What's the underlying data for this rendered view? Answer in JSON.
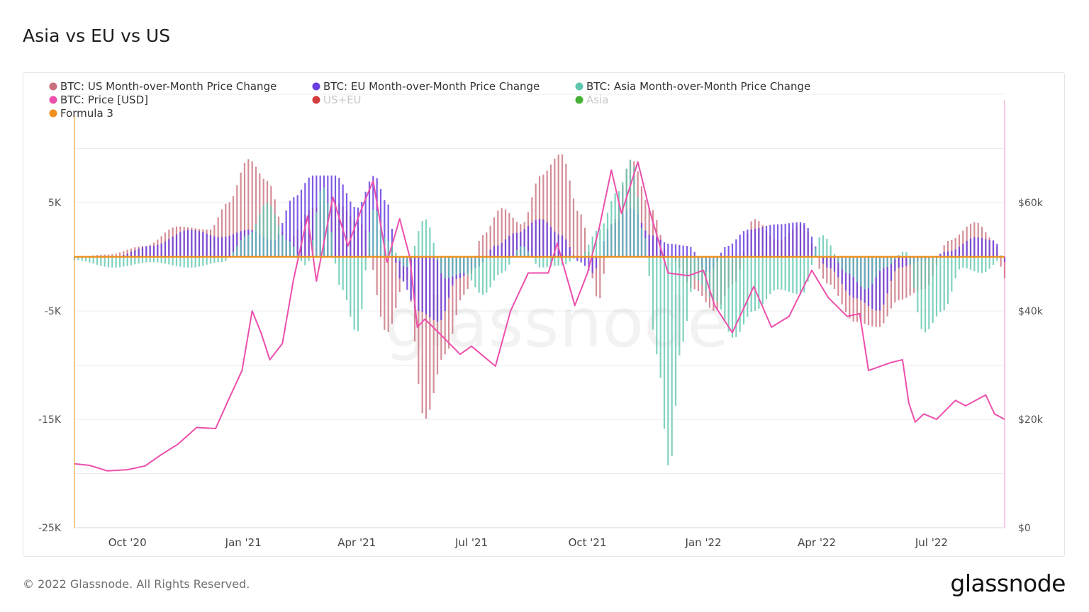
{
  "title": "Asia vs EU vs US",
  "footer": {
    "copyright": "© 2022 Glassnode. All Rights Reserved.",
    "logo": "glassnode"
  },
  "watermark": "glassnode",
  "colors": {
    "us": "#c9707c",
    "eu": "#6a3ee0",
    "asia": "#5fc7b0",
    "price": "#ec4fac",
    "us_eu": "#d23e3e",
    "asia_total": "#44b233",
    "formula3": "#f0901e"
  },
  "legend": [
    {
      "label": "BTC: US Month-over-Month Price Change",
      "color": "#c9707c",
      "active": true
    },
    {
      "label": "BTC: EU Month-over-Month Price Change",
      "color": "#6a3ee0",
      "active": true
    },
    {
      "label": "BTC: Asia Month-over-Month Price Change",
      "color": "#5fc7b0",
      "active": true
    },
    {
      "label": "BTC: Price [USD]",
      "color": "#ec4fac",
      "active": true
    },
    {
      "label": "US+EU",
      "color": "#d23e3e",
      "active": false
    },
    {
      "label": "Asia",
      "color": "#44b233",
      "active": false
    },
    {
      "label": "Formula 3",
      "color": "#f0901e",
      "active": true
    }
  ],
  "chart_data": {
    "type": "bar",
    "title": "Asia vs EU vs US",
    "x_range": [
      "2020-08-20",
      "2022-08-28"
    ],
    "x_ticks": [
      "Oct '20",
      "Jan '21",
      "Apr '21",
      "Jul '21",
      "Oct '21",
      "Jan '22",
      "Apr '22",
      "Jul '22"
    ],
    "y_left": {
      "range": [
        -25000,
        15000
      ],
      "ticks": [
        5000,
        -5000,
        -15000,
        -25000
      ],
      "tick_labels": [
        "5K",
        "-5K",
        "-15K",
        "-25K"
      ]
    },
    "y_right": {
      "range": [
        0,
        80000
      ],
      "ticks": [
        60000,
        40000,
        20000,
        0
      ],
      "tick_labels": [
        "$60k",
        "$40k",
        "$20k",
        "$0"
      ]
    },
    "grid": true,
    "legend_position": "top-left",
    "series": [
      {
        "name": "BTC: US Month-over-Month Price Change",
        "axis": "left",
        "style": "bars",
        "points": [
          [
            "2020-08-20",
            0
          ],
          [
            "2020-09-15",
            200
          ],
          [
            "2020-10-15",
            1000
          ],
          [
            "2020-11-10",
            2800
          ],
          [
            "2020-12-05",
            2500
          ],
          [
            "2020-12-20",
            5000
          ],
          [
            "2021-01-05",
            9000
          ],
          [
            "2021-01-20",
            7000
          ],
          [
            "2021-02-05",
            1500
          ],
          [
            "2021-02-25",
            4500
          ],
          [
            "2021-03-15",
            5000
          ],
          [
            "2021-04-05",
            3000
          ],
          [
            "2021-04-25",
            -7000
          ],
          [
            "2021-05-10",
            -2000
          ],
          [
            "2021-05-25",
            -15000
          ],
          [
            "2021-06-10",
            -9000
          ],
          [
            "2021-06-25",
            -3500
          ],
          [
            "2021-07-10",
            2000
          ],
          [
            "2021-07-25",
            4500
          ],
          [
            "2021-08-10",
            3000
          ],
          [
            "2021-08-25",
            7500
          ],
          [
            "2021-09-10",
            9500
          ],
          [
            "2021-09-25",
            4000
          ],
          [
            "2021-10-10",
            -4000
          ],
          [
            "2021-10-20",
            3000
          ],
          [
            "2021-11-05",
            9000
          ],
          [
            "2021-11-20",
            4500
          ],
          [
            "2021-12-05",
            0
          ],
          [
            "2021-12-25",
            -3000
          ],
          [
            "2022-01-10",
            -5000
          ],
          [
            "2022-01-25",
            -2500
          ],
          [
            "2022-02-10",
            3500
          ],
          [
            "2022-03-01",
            1500
          ],
          [
            "2022-03-20",
            3000
          ],
          [
            "2022-04-10",
            -2500
          ],
          [
            "2022-05-01",
            -6000
          ],
          [
            "2022-05-20",
            -6500
          ],
          [
            "2022-06-05",
            -4000
          ],
          [
            "2022-06-25",
            -3000
          ],
          [
            "2022-07-15",
            1500
          ],
          [
            "2022-08-05",
            3200
          ],
          [
            "2022-08-20",
            1500
          ],
          [
            "2022-08-28",
            -2000
          ]
        ]
      },
      {
        "name": "BTC: EU Month-over-Month Price Change",
        "axis": "left",
        "style": "bars",
        "points": [
          [
            "2020-08-20",
            0
          ],
          [
            "2020-09-20",
            0
          ],
          [
            "2020-10-20",
            1000
          ],
          [
            "2020-11-20",
            2500
          ],
          [
            "2020-12-15",
            1800
          ],
          [
            "2021-01-05",
            2500
          ],
          [
            "2021-01-25",
            1500
          ],
          [
            "2021-02-10",
            5500
          ],
          [
            "2021-02-25",
            7500
          ],
          [
            "2021-03-15",
            7500
          ],
          [
            "2021-04-01",
            4500
          ],
          [
            "2021-04-15",
            7500
          ],
          [
            "2021-04-25",
            5000
          ],
          [
            "2021-05-05",
            -2000
          ],
          [
            "2021-05-20",
            -5000
          ],
          [
            "2021-06-05",
            -6000
          ],
          [
            "2021-06-20",
            -2000
          ],
          [
            "2021-07-05",
            -1000
          ],
          [
            "2021-07-20",
            1000
          ],
          [
            "2021-08-05",
            2200
          ],
          [
            "2021-08-25",
            3500
          ],
          [
            "2021-09-10",
            2000
          ],
          [
            "2021-09-25",
            -500
          ],
          [
            "2021-10-05",
            -1500
          ],
          [
            "2021-10-20",
            3000
          ],
          [
            "2021-11-05",
            4500
          ],
          [
            "2021-11-20",
            2000
          ],
          [
            "2021-12-05",
            1200
          ],
          [
            "2021-12-20",
            1000
          ],
          [
            "2022-01-05",
            -1500
          ],
          [
            "2022-01-20",
            1000
          ],
          [
            "2022-02-05",
            2500
          ],
          [
            "2022-03-01",
            3000
          ],
          [
            "2022-03-20",
            3200
          ],
          [
            "2022-04-10",
            -1000
          ],
          [
            "2022-05-01",
            -3800
          ],
          [
            "2022-05-20",
            -5000
          ],
          [
            "2022-06-05",
            -1000
          ],
          [
            "2022-06-25",
            -300
          ],
          [
            "2022-07-15",
            500
          ],
          [
            "2022-08-05",
            1800
          ],
          [
            "2022-08-20",
            1500
          ],
          [
            "2022-08-28",
            -500
          ]
        ]
      },
      {
        "name": "BTC: Asia Month-over-Month Price Change",
        "axis": "left",
        "style": "bars",
        "points": [
          [
            "2020-08-20",
            -300
          ],
          [
            "2020-09-20",
            -1000
          ],
          [
            "2020-10-20",
            -500
          ],
          [
            "2020-11-20",
            -1000
          ],
          [
            "2020-12-15",
            -500
          ],
          [
            "2021-01-05",
            2000
          ],
          [
            "2021-01-20",
            5000
          ],
          [
            "2021-02-05",
            1500
          ],
          [
            "2021-02-20",
            -800
          ],
          [
            "2021-03-05",
            6500
          ],
          [
            "2021-03-20",
            -3000
          ],
          [
            "2021-04-01",
            -7000
          ],
          [
            "2021-04-15",
            4500
          ],
          [
            "2021-04-25",
            1500
          ],
          [
            "2021-05-10",
            -1000
          ],
          [
            "2021-05-25",
            3500
          ],
          [
            "2021-06-10",
            -2000
          ],
          [
            "2021-06-25",
            -1500
          ],
          [
            "2021-07-10",
            -3500
          ],
          [
            "2021-07-25",
            -1500
          ],
          [
            "2021-08-10",
            1000
          ],
          [
            "2021-08-25",
            -1000
          ],
          [
            "2021-09-10",
            -800
          ],
          [
            "2021-09-25",
            0
          ],
          [
            "2021-10-10",
            2500
          ],
          [
            "2021-10-25",
            6000
          ],
          [
            "2021-11-05",
            9000
          ],
          [
            "2021-11-15",
            2000
          ],
          [
            "2021-11-25",
            -9000
          ],
          [
            "2021-12-05",
            -19500
          ],
          [
            "2021-12-15",
            -8000
          ],
          [
            "2021-12-25",
            -2000
          ],
          [
            "2022-01-10",
            -4000
          ],
          [
            "2022-01-25",
            -7500
          ],
          [
            "2022-02-10",
            -5000
          ],
          [
            "2022-03-01",
            -3000
          ],
          [
            "2022-03-20",
            -3500
          ],
          [
            "2022-04-05",
            2000
          ],
          [
            "2022-04-25",
            -1500
          ],
          [
            "2022-05-10",
            -3000
          ],
          [
            "2022-05-25",
            -1000
          ],
          [
            "2022-06-10",
            500
          ],
          [
            "2022-06-25",
            -7000
          ],
          [
            "2022-07-10",
            -5000
          ],
          [
            "2022-07-25",
            -1000
          ],
          [
            "2022-08-10",
            -1500
          ],
          [
            "2022-08-28",
            0
          ]
        ]
      },
      {
        "name": "BTC: Price [USD]",
        "axis": "right",
        "style": "line",
        "points": [
          [
            "2020-08-20",
            11800
          ],
          [
            "2020-09-01",
            11500
          ],
          [
            "2020-09-15",
            10500
          ],
          [
            "2020-10-01",
            10700
          ],
          [
            "2020-10-15",
            11400
          ],
          [
            "2020-10-28",
            13500
          ],
          [
            "2020-11-10",
            15400
          ],
          [
            "2020-11-25",
            18500
          ],
          [
            "2020-12-10",
            18300
          ],
          [
            "2020-12-20",
            23500
          ],
          [
            "2020-12-31",
            29000
          ],
          [
            "2021-01-08",
            40000
          ],
          [
            "2021-01-15",
            36000
          ],
          [
            "2021-01-22",
            31000
          ],
          [
            "2021-02-01",
            34000
          ],
          [
            "2021-02-10",
            46000
          ],
          [
            "2021-02-21",
            57500
          ],
          [
            "2021-02-28",
            45500
          ],
          [
            "2021-03-13",
            61000
          ],
          [
            "2021-03-25",
            52000
          ],
          [
            "2021-04-05",
            59000
          ],
          [
            "2021-04-14",
            64000
          ],
          [
            "2021-04-25",
            49000
          ],
          [
            "2021-05-05",
            57000
          ],
          [
            "2021-05-13",
            50000
          ],
          [
            "2021-05-19",
            37000
          ],
          [
            "2021-05-25",
            38500
          ],
          [
            "2021-06-05",
            36000
          ],
          [
            "2021-06-22",
            32000
          ],
          [
            "2021-07-01",
            33500
          ],
          [
            "2021-07-20",
            29800
          ],
          [
            "2021-08-01",
            40000
          ],
          [
            "2021-08-15",
            47000
          ],
          [
            "2021-08-31",
            47000
          ],
          [
            "2021-09-07",
            52500
          ],
          [
            "2021-09-21",
            41000
          ],
          [
            "2021-10-01",
            47000
          ],
          [
            "2021-10-10",
            55000
          ],
          [
            "2021-10-20",
            66000
          ],
          [
            "2021-10-28",
            58000
          ],
          [
            "2021-11-10",
            67500
          ],
          [
            "2021-11-20",
            58000
          ],
          [
            "2021-12-04",
            47000
          ],
          [
            "2021-12-20",
            46500
          ],
          [
            "2022-01-01",
            47500
          ],
          [
            "2022-01-10",
            41000
          ],
          [
            "2022-01-24",
            36000
          ],
          [
            "2022-02-10",
            44500
          ],
          [
            "2022-02-24",
            37000
          ],
          [
            "2022-03-10",
            39000
          ],
          [
            "2022-03-28",
            47500
          ],
          [
            "2022-04-10",
            42500
          ],
          [
            "2022-04-25",
            39000
          ],
          [
            "2022-05-05",
            39500
          ],
          [
            "2022-05-12",
            29000
          ],
          [
            "2022-05-30",
            30500
          ],
          [
            "2022-06-08",
            31000
          ],
          [
            "2022-06-13",
            23000
          ],
          [
            "2022-06-18",
            19500
          ],
          [
            "2022-06-25",
            21000
          ],
          [
            "2022-07-05",
            20000
          ],
          [
            "2022-07-20",
            23500
          ],
          [
            "2022-07-28",
            22500
          ],
          [
            "2022-08-13",
            24500
          ],
          [
            "2022-08-20",
            21000
          ],
          [
            "2022-08-28",
            20000
          ]
        ]
      },
      {
        "name": "Formula 3",
        "axis": "left",
        "style": "line",
        "points": [
          [
            "2020-08-20",
            0
          ],
          [
            "2022-08-28",
            0
          ]
        ]
      }
    ]
  }
}
